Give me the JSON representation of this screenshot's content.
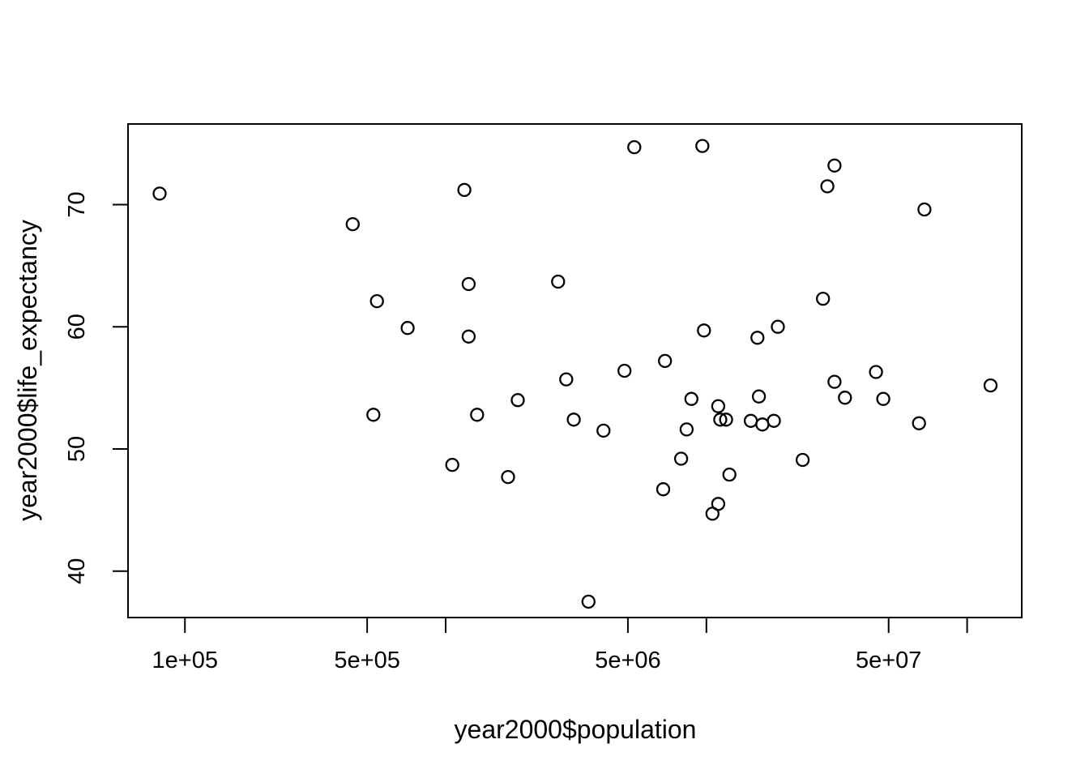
{
  "figure": {
    "background": "#ffffff",
    "foreground": "#000000"
  },
  "chart_data": {
    "type": "scatter",
    "title": "",
    "xlabel": "year2000$population",
    "ylabel": "year2000$life_expectancy",
    "x_scale": "log10",
    "y_scale": "linear",
    "xlim": [
      60500,
      162000000
    ],
    "ylim": [
      36.2,
      76.6
    ],
    "grid": false,
    "legend": null,
    "marker": {
      "shape": "open-circle",
      "color": "#000000",
      "radius_px": 7.5,
      "stroke_px": 2.3
    },
    "x_ticks": [
      {
        "value": 100000,
        "label": "1e+05"
      },
      {
        "value": 500000,
        "label": "5e+05"
      },
      {
        "value": 1000000,
        "label": ""
      },
      {
        "value": 5000000,
        "label": "5e+06"
      },
      {
        "value": 10000000,
        "label": ""
      },
      {
        "value": 50000000,
        "label": "5e+07"
      },
      {
        "value": 100000000,
        "label": ""
      }
    ],
    "y_ticks": [
      {
        "value": 40,
        "label": "40"
      },
      {
        "value": 50,
        "label": "50"
      },
      {
        "value": 60,
        "label": "60"
      },
      {
        "value": 70,
        "label": "70"
      }
    ],
    "points": [
      [
        80000,
        70.9
      ],
      [
        440000,
        68.4
      ],
      [
        545000,
        62.1
      ],
      [
        715000,
        59.9
      ],
      [
        5290000,
        74.7
      ],
      [
        9650000,
        74.8
      ],
      [
        1180000,
        71.2
      ],
      [
        1225000,
        63.5
      ],
      [
        2700000,
        63.7
      ],
      [
        1225000,
        59.2
      ],
      [
        9790000,
        59.7
      ],
      [
        4850000,
        56.4
      ],
      [
        6940000,
        57.2
      ],
      [
        31000000,
        73.2
      ],
      [
        29100000,
        71.5
      ],
      [
        68600000,
        69.6
      ],
      [
        28000000,
        62.3
      ],
      [
        18800000,
        60.0
      ],
      [
        15700000,
        59.1
      ],
      [
        44700000,
        56.3
      ],
      [
        528000,
        52.8
      ],
      [
        2900000,
        55.7
      ],
      [
        1890000,
        54.0
      ],
      [
        1320000,
        52.8
      ],
      [
        3100000,
        52.4
      ],
      [
        4030000,
        51.5
      ],
      [
        8760000,
        54.1
      ],
      [
        11100000,
        53.5
      ],
      [
        11300000,
        52.4
      ],
      [
        11900000,
        52.4
      ],
      [
        8400000,
        51.6
      ],
      [
        8000000,
        49.2
      ],
      [
        1060000,
        48.7
      ],
      [
        1735000,
        47.7
      ],
      [
        6830000,
        46.7
      ],
      [
        12250000,
        47.9
      ],
      [
        11100000,
        45.5
      ],
      [
        10550000,
        44.7
      ],
      [
        3530000,
        37.5
      ],
      [
        31000000,
        55.5
      ],
      [
        34000000,
        54.2
      ],
      [
        47700000,
        54.1
      ],
      [
        15900000,
        54.3
      ],
      [
        14800000,
        52.3
      ],
      [
        16400000,
        52.0
      ],
      [
        18150000,
        52.3
      ],
      [
        65400000,
        52.1
      ],
      [
        123000000,
        55.2
      ],
      [
        23400000,
        49.1
      ]
    ]
  }
}
